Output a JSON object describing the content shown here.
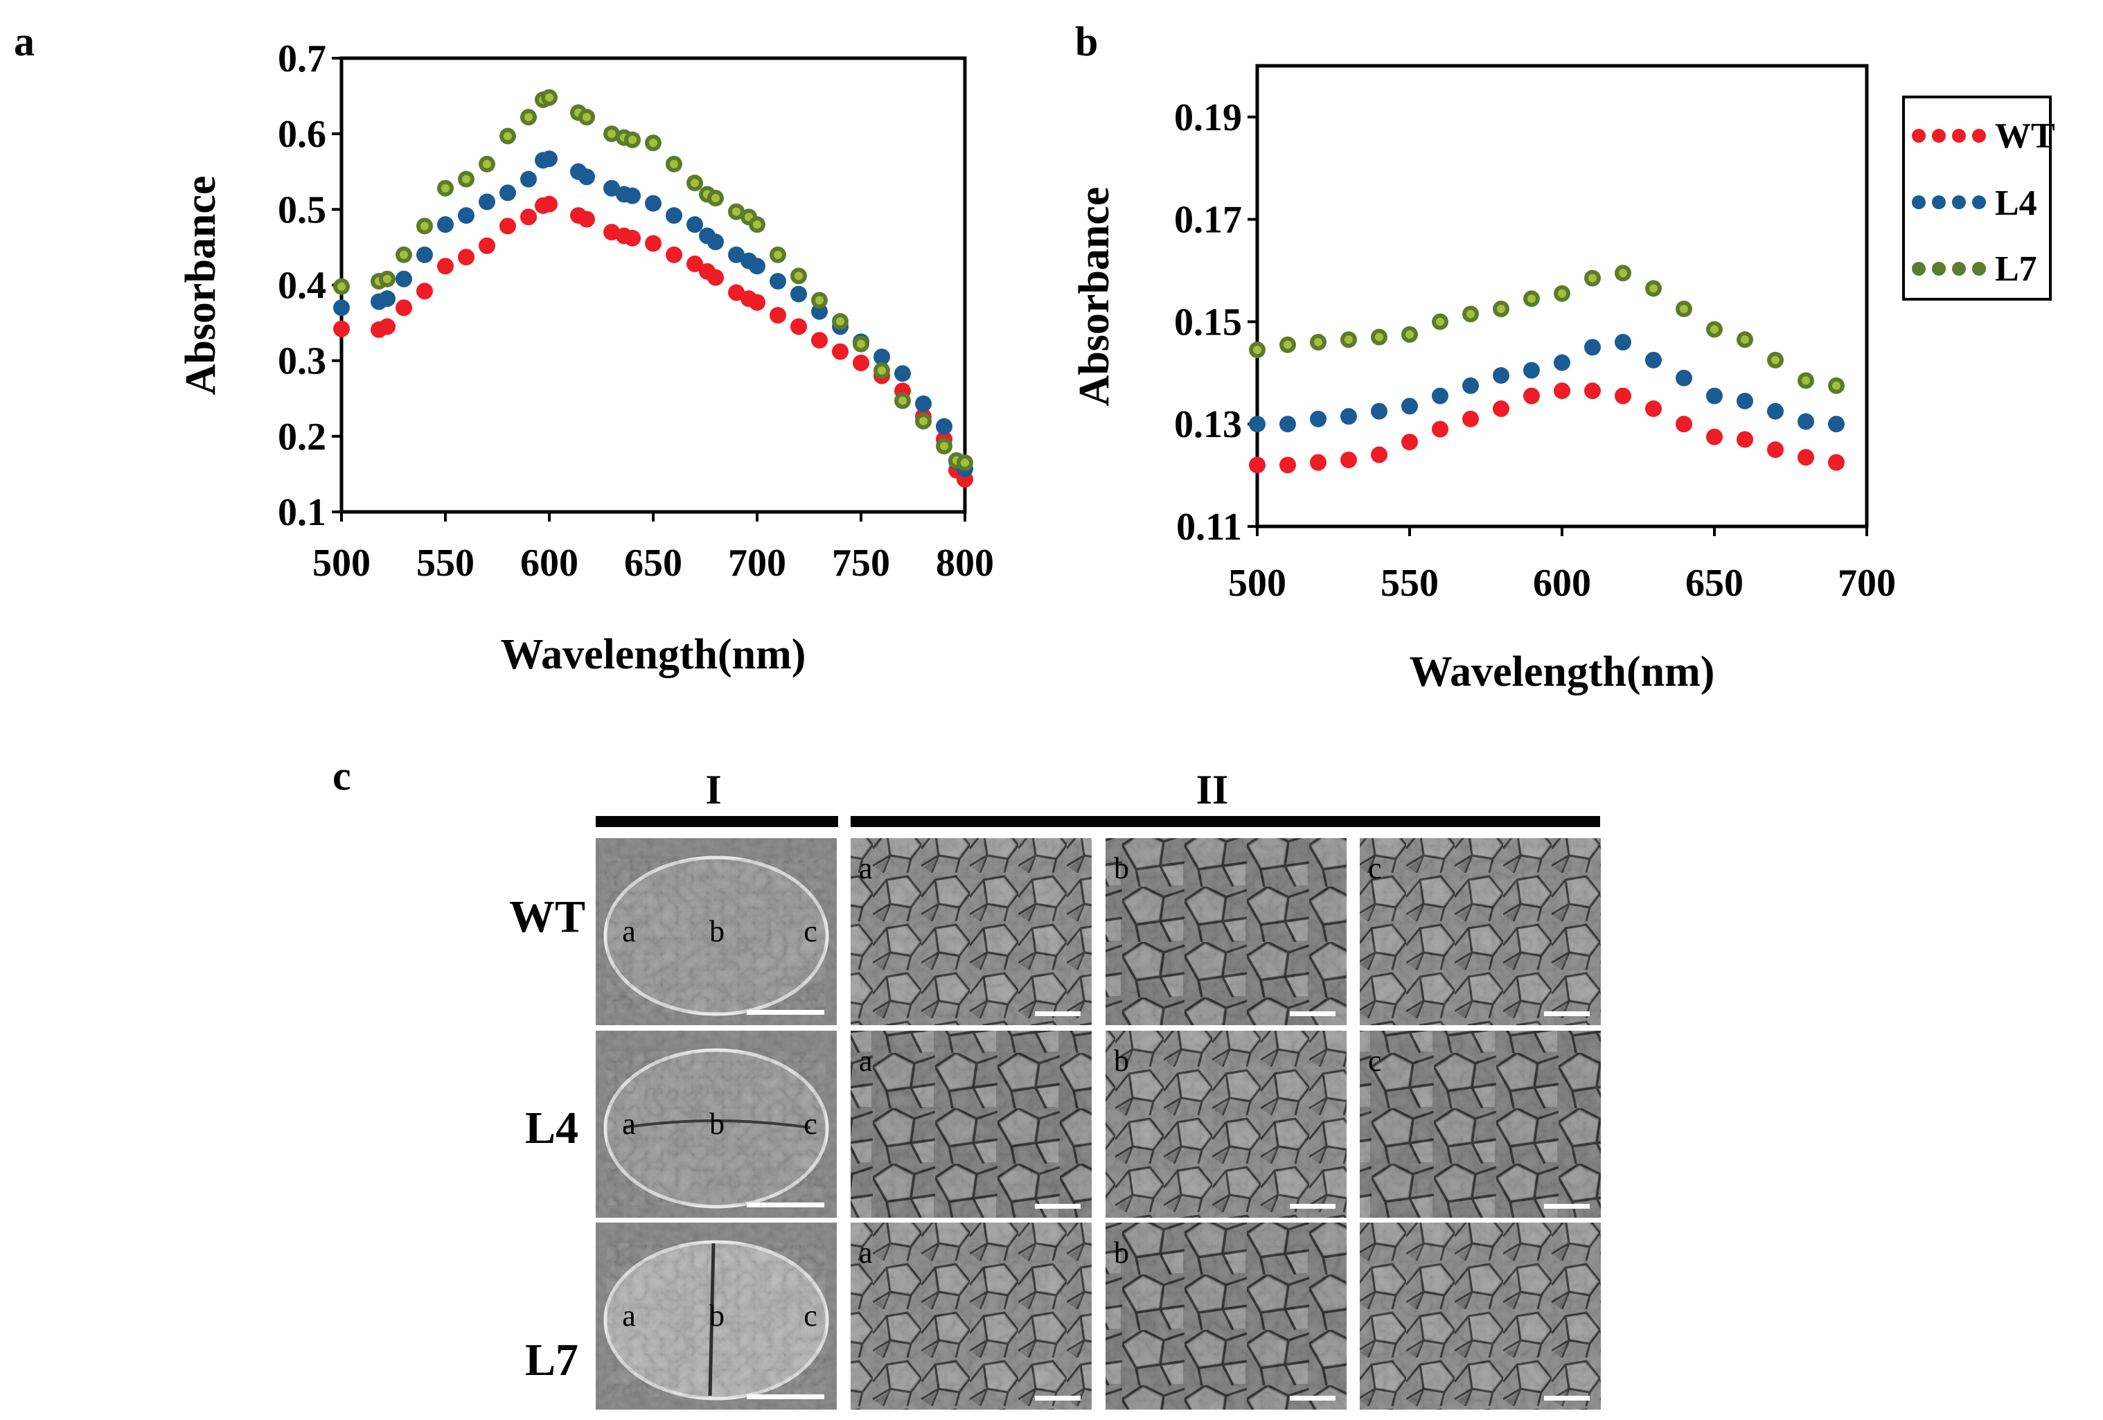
{
  "figure": {
    "panel_a": "a",
    "panel_b": "b",
    "panel_c": "c"
  },
  "colors": {
    "WT": "#ee1c24",
    "L4": "#1b5b94",
    "L7": "#5a7c2b",
    "L7_core": "#a8be3a"
  },
  "chart_data": [
    {
      "type": "scatter",
      "panel": "a",
      "xlabel": "Wavelength(nm)",
      "ylabel": "Absorbance",
      "xlim": [
        500,
        800
      ],
      "ylim": [
        0.1,
        0.7
      ],
      "xticks": [
        "500",
        "550",
        "600",
        "650",
        "700",
        "750",
        "800"
      ],
      "yticks": [
        "0.1",
        "0.2",
        "0.3",
        "0.4",
        "0.5",
        "0.6",
        "0.7"
      ],
      "x": [
        500,
        518,
        522,
        530,
        540,
        550,
        560,
        570,
        580,
        590,
        597,
        600,
        614,
        618,
        630,
        636,
        640,
        650,
        660,
        670,
        676,
        680,
        690,
        696,
        700,
        710,
        720,
        730,
        740,
        750,
        760,
        770,
        780,
        790,
        796,
        800
      ],
      "series": [
        {
          "name": "WT",
          "values": [
            0.342,
            0.341,
            0.345,
            0.37,
            0.392,
            0.425,
            0.437,
            0.452,
            0.478,
            0.49,
            0.505,
            0.507,
            0.492,
            0.487,
            0.47,
            0.465,
            0.462,
            0.455,
            0.44,
            0.428,
            0.418,
            0.41,
            0.39,
            0.382,
            0.377,
            0.36,
            0.345,
            0.327,
            0.312,
            0.297,
            0.28,
            0.26,
            0.226,
            0.196,
            0.155,
            0.143
          ]
        },
        {
          "name": "L4",
          "values": [
            0.37,
            0.378,
            0.382,
            0.408,
            0.44,
            0.48,
            0.492,
            0.51,
            0.522,
            0.54,
            0.565,
            0.567,
            0.55,
            0.543,
            0.528,
            0.52,
            0.518,
            0.508,
            0.492,
            0.48,
            0.465,
            0.457,
            0.44,
            0.432,
            0.425,
            0.405,
            0.388,
            0.365,
            0.345,
            0.325,
            0.305,
            0.283,
            0.243,
            0.213,
            0.167,
            0.157
          ]
        },
        {
          "name": "L7",
          "values": [
            0.398,
            0.405,
            0.408,
            0.44,
            0.478,
            0.528,
            0.54,
            0.56,
            0.597,
            0.622,
            0.645,
            0.648,
            0.628,
            0.622,
            0.6,
            0.595,
            0.592,
            0.588,
            0.56,
            0.535,
            0.52,
            0.515,
            0.497,
            0.49,
            0.48,
            0.44,
            0.412,
            0.38,
            0.352,
            0.322,
            0.287,
            0.247,
            0.22,
            0.187,
            0.168,
            0.165
          ]
        }
      ]
    },
    {
      "type": "scatter",
      "panel": "b",
      "xlabel": "Wavelength(nm)",
      "ylabel": "Absorbance",
      "xlim": [
        500,
        700
      ],
      "ylim": [
        0.11,
        0.2
      ],
      "xticks": [
        "500",
        "550",
        "600",
        "650",
        "700"
      ],
      "yticks": [
        "0.11",
        "0.13",
        "0.15",
        "0.17",
        "0.19"
      ],
      "x": [
        500,
        510,
        520,
        530,
        540,
        550,
        560,
        570,
        580,
        590,
        600,
        610,
        620,
        630,
        640,
        650,
        660,
        670,
        680,
        690
      ],
      "series": [
        {
          "name": "WT",
          "values": [
            0.122,
            0.122,
            0.1225,
            0.123,
            0.124,
            0.1265,
            0.129,
            0.131,
            0.133,
            0.1355,
            0.1365,
            0.1365,
            0.1355,
            0.133,
            0.13,
            0.1275,
            0.127,
            0.125,
            0.1235,
            0.1225
          ]
        },
        {
          "name": "L4",
          "values": [
            0.13,
            0.13,
            0.131,
            0.1315,
            0.1325,
            0.1335,
            0.1355,
            0.1375,
            0.1395,
            0.1405,
            0.142,
            0.145,
            0.146,
            0.1425,
            0.139,
            0.1355,
            0.1345,
            0.1325,
            0.1305,
            0.13
          ]
        },
        {
          "name": "L7",
          "values": [
            0.1445,
            0.1455,
            0.146,
            0.1465,
            0.147,
            0.1475,
            0.15,
            0.1515,
            0.1525,
            0.1545,
            0.1555,
            0.1585,
            0.1595,
            0.1565,
            0.1525,
            0.1485,
            0.1465,
            0.1425,
            0.1385,
            0.1375
          ]
        }
      ],
      "legend": [
        "WT",
        "L4",
        "L7"
      ],
      "legend_position": "right"
    }
  ],
  "panel_c": {
    "group_I": "I",
    "group_II": "II",
    "rows": [
      "WT",
      "L4",
      "L7"
    ],
    "overview_labels": [
      "a",
      "b",
      "c"
    ],
    "detail_labels": [
      [
        "a",
        "b",
        "c"
      ],
      [
        "a",
        "b",
        "c"
      ],
      [
        "a",
        "b",
        ""
      ]
    ]
  }
}
